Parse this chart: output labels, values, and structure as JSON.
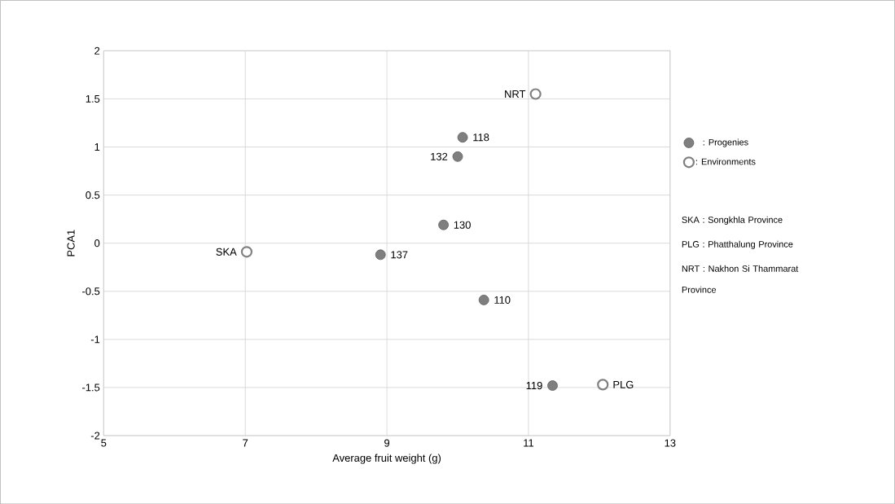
{
  "chart_data": {
    "type": "scatter",
    "xlabel": "Average fruit weight (g)",
    "ylabel": "PCA1",
    "xlim": [
      5,
      13
    ],
    "xticks": [
      5,
      7,
      9,
      11,
      13
    ],
    "ylim": [
      -2,
      2
    ],
    "yticks": [
      -2,
      -1.5,
      -1,
      -0.5,
      0,
      0.5,
      1,
      1.5,
      2
    ],
    "grid": true,
    "legend": "right",
    "series": [
      {
        "name": ": Progenies",
        "color": "#7f7f7f",
        "x": [
          10.07,
          10.0,
          9.8,
          8.91,
          10.37,
          11.34
        ],
        "values": [
          1.1,
          0.9,
          0.19,
          -0.12,
          -0.59,
          -1.48
        ]
      },
      {
        "name": ": Environments",
        "color": "#ffffff",
        "x": [
          11.1,
          7.02,
          12.05
        ],
        "values": [
          1.55,
          -0.09,
          -1.47
        ]
      }
    ],
    "annotations": [
      {
        "text": "NRT",
        "x": 11.1,
        "y": 1.55
      },
      {
        "text": "118",
        "x": 10.07,
        "y": 1.1
      },
      {
        "text": "132",
        "x": 10.0,
        "y": 0.9
      },
      {
        "text": "130",
        "x": 9.8,
        "y": 0.19
      },
      {
        "text": "SKA",
        "x": 7.02,
        "y": -0.09
      },
      {
        "text": "137",
        "x": 8.91,
        "y": -0.12
      },
      {
        "text": "110",
        "x": 10.37,
        "y": -0.59
      },
      {
        "text": "119",
        "x": 11.34,
        "y": -1.48
      },
      {
        "text": "PLG",
        "x": 12.05,
        "y": -1.47
      },
      "SKA : Songkhla Province",
      "PLG : Phatthalung Province",
      "NRT : Nakhon Si Thammarat Province"
    ]
  }
}
